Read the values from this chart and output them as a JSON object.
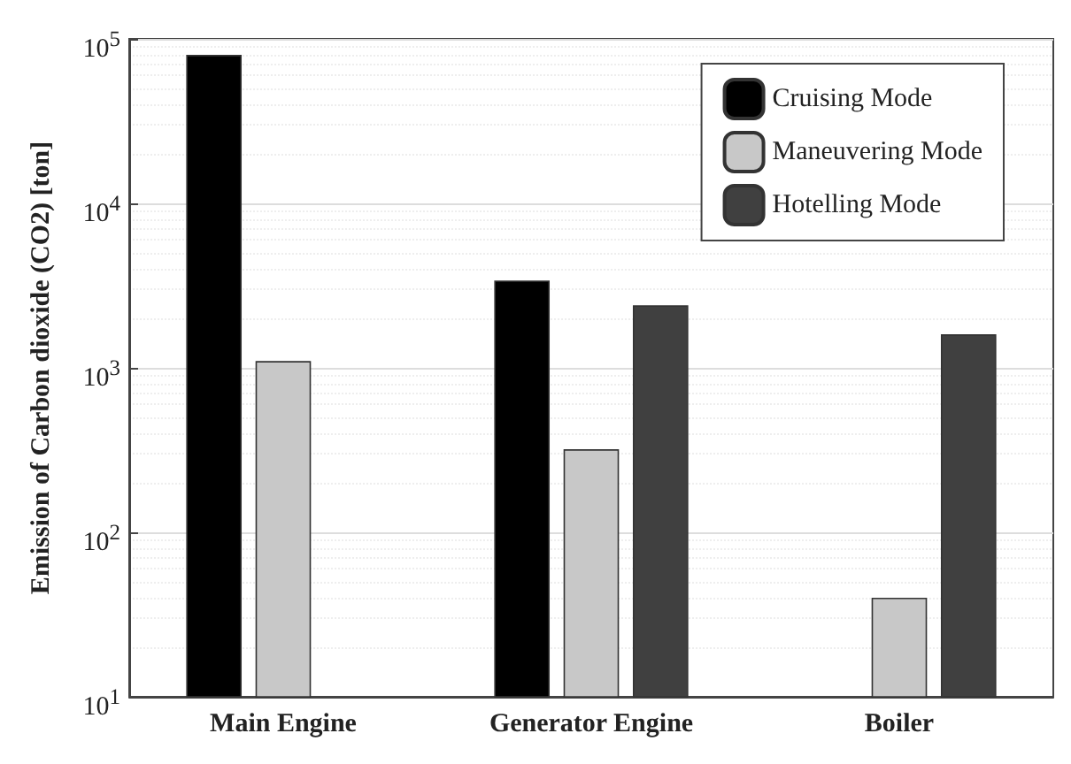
{
  "chart_data": {
    "type": "bar",
    "ylabel": "Emission of Carbon dioxide (CO2) [ton]",
    "categories": [
      "Main Engine",
      "Generator Engine",
      "Boiler"
    ],
    "series": [
      {
        "name": "Cruising Mode",
        "color": "#000000",
        "values": [
          80000,
          3400,
          null
        ]
      },
      {
        "name": "Maneuvering Mode",
        "color": "#c8c8c8",
        "values": [
          1100,
          320,
          40
        ]
      },
      {
        "name": "Hotelling Mode",
        "color": "#404040",
        "values": [
          null,
          2400,
          1600
        ]
      }
    ],
    "log": "y",
    "ylim": [
      10,
      100000
    ],
    "yticks": [
      {
        "value": 10,
        "label": "10$^{1}$"
      },
      {
        "value": 100,
        "label": "10$^{2}$"
      },
      {
        "value": 1000,
        "label": "10$^{3}$"
      },
      {
        "value": 10000,
        "label": "10$^{4}$"
      },
      {
        "value": 100000,
        "label": "10$^{5}$"
      }
    ],
    "grid": true,
    "legend": "top right"
  }
}
